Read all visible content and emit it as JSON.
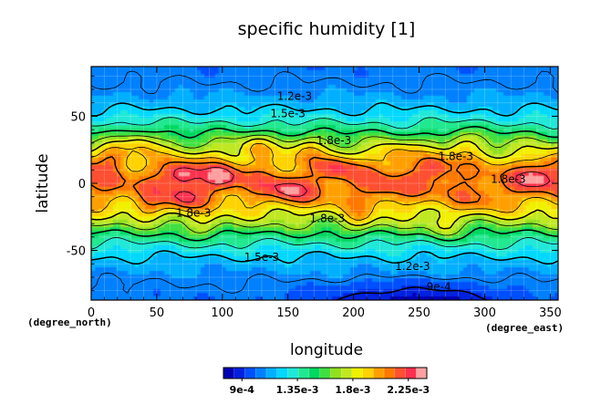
{
  "chart_data": {
    "type": "heatmap",
    "title": "specific humidity [1]",
    "xlabel": "longitude",
    "ylabel": "latitude",
    "x_unit": "(degree_east)",
    "y_unit": "(degree_north)",
    "xlim": [
      0,
      356
    ],
    "ylim": [
      -87,
      87
    ],
    "x_ticks": [
      0,
      50,
      100,
      150,
      200,
      250,
      300,
      350
    ],
    "y_ticks": [
      50,
      0,
      -50
    ],
    "contour_labels": [
      {
        "text": "1.2e-3",
        "lon": 155,
        "lat": 65
      },
      {
        "text": "1.5e-3",
        "lon": 150,
        "lat": 52
      },
      {
        "text": "1.8e-3",
        "lon": 185,
        "lat": 32
      },
      {
        "text": "1.8e-3",
        "lon": 278,
        "lat": 20
      },
      {
        "text": "1.8e-3",
        "lon": 318,
        "lat": 3
      },
      {
        "text": "1.8e-3",
        "lon": 78,
        "lat": -22
      },
      {
        "text": "1.8e-3",
        "lon": 180,
        "lat": -26
      },
      {
        "text": "1.5e-3",
        "lon": 130,
        "lat": -55
      },
      {
        "text": "1.2e-3",
        "lon": 245,
        "lat": -62
      },
      {
        "text": "9e-4",
        "lon": 265,
        "lat": -77
      }
    ],
    "colorbar": {
      "tick_labels": [
        "9e-4",
        "1.35e-3",
        "1.8e-3",
        "2.25e-3"
      ],
      "tick_values": [
        0.0009,
        0.00135,
        0.0018,
        0.00225
      ],
      "range": [
        0.00075,
        0.0024
      ],
      "colors": [
        "#0000b4",
        "#0020e0",
        "#0050ff",
        "#0080ff",
        "#00b0ff",
        "#00d8ff",
        "#20e8d8",
        "#20e890",
        "#00d860",
        "#40e040",
        "#90e020",
        "#c0e820",
        "#f0f000",
        "#ffd200",
        "#ffa000",
        "#ff7800",
        "#ff5030",
        "#ff3050",
        "#ffa0a0"
      ]
    }
  }
}
